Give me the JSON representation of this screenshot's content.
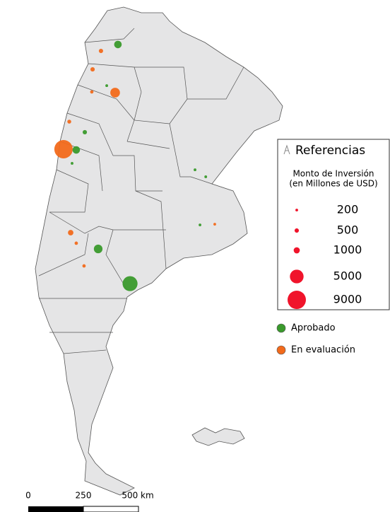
{
  "map": {
    "points": [
      {
        "status": 0,
        "lon": -65.55,
        "lat": -24.42,
        "value": 1500
      },
      {
        "status": 0,
        "lon": -66.27,
        "lat": -27.3,
        "value": 200
      },
      {
        "status": 0,
        "lon": -67.68,
        "lat": -30.56,
        "value": 500
      },
      {
        "status": 0,
        "lon": -68.23,
        "lat": -31.8,
        "value": 1500
      },
      {
        "status": 0,
        "lon": -68.5,
        "lat": -32.74,
        "value": 200
      },
      {
        "status": 0,
        "lon": -60.59,
        "lat": -33.19,
        "value": 200
      },
      {
        "status": 0,
        "lon": -59.9,
        "lat": -33.68,
        "value": 200
      },
      {
        "status": 0,
        "lon": -60.27,
        "lat": -37.05,
        "value": 200
      },
      {
        "status": 0,
        "lon": -66.82,
        "lat": -38.73,
        "value": 2000
      },
      {
        "status": 0,
        "lon": -64.77,
        "lat": -41.16,
        "value": 6000
      },
      {
        "status": 1,
        "lon": -66.64,
        "lat": -24.87,
        "value": 500
      },
      {
        "status": 1,
        "lon": -67.18,
        "lat": -26.16,
        "value": 500
      },
      {
        "status": 1,
        "lon": -67.23,
        "lat": -27.74,
        "value": 300
      },
      {
        "status": 1,
        "lon": -65.73,
        "lat": -27.79,
        "value": 2500
      },
      {
        "status": 1,
        "lon": -68.68,
        "lat": -29.82,
        "value": 400
      },
      {
        "status": 1,
        "lon": -69.05,
        "lat": -31.75,
        "value": 9000
      },
      {
        "status": 1,
        "lon": -59.32,
        "lat": -37.0,
        "value": 200
      },
      {
        "status": 1,
        "lon": -68.59,
        "lat": -37.59,
        "value": 800
      },
      {
        "status": 1,
        "lon": -68.23,
        "lat": -38.33,
        "value": 300
      },
      {
        "status": 1,
        "lon": -67.73,
        "lat": -39.92,
        "value": 300
      }
    ]
  },
  "legend": {
    "title": "Referencias",
    "subtitle": [
      "Monto de Inversión",
      "(en Millones de USD)"
    ],
    "size_color": "#f0142b",
    "sizes": [
      200,
      500,
      1000,
      5000,
      9000
    ],
    "status": [
      {
        "name": "Aprobado",
        "color": "#3a9a2c"
      },
      {
        "name": "En evaluación",
        "color": "#f26a1b"
      }
    ]
  },
  "scale_bar": {
    "labels": [
      "0",
      "250",
      "500 km"
    ]
  }
}
